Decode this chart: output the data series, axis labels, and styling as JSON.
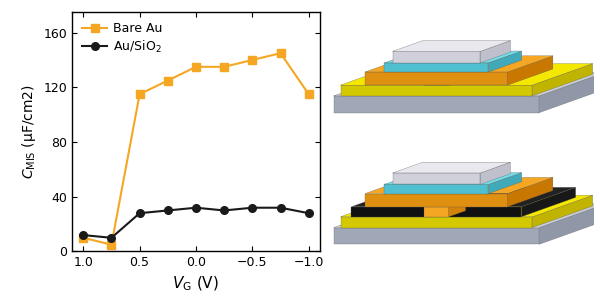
{
  "vg_bare_au": [
    1.0,
    0.75,
    0.5,
    0.25,
    0.0,
    -0.25,
    -0.5,
    -0.75,
    -1.0
  ],
  "c_bare_au": [
    10,
    5,
    115,
    125,
    135,
    135,
    140,
    145,
    115
  ],
  "vg_sio2": [
    1.0,
    0.75,
    0.5,
    0.25,
    0.0,
    -0.25,
    -0.5,
    -0.75,
    -1.0
  ],
  "c_sio2": [
    12,
    10,
    28,
    30,
    32,
    30,
    32,
    32,
    28
  ],
  "bare_au_color": "#F5A623",
  "sio2_color": "#1a1a1a",
  "xlabel": "$V_{\\mathrm{G}}$ (V)",
  "ylabel": "$C_{\\mathrm{MIS}}$ (μF/cm2)",
  "legend_bare": "Bare Au",
  "legend_sio2": "Au/SiO$_2$",
  "ylim": [
    0,
    175
  ],
  "yticks": [
    0,
    40,
    80,
    120,
    160
  ],
  "xlim_left": 1.1,
  "xlim_right": -1.1,
  "xticks": [
    1.0,
    0.5,
    0.0,
    -0.5,
    -1.0
  ],
  "axis_color": "#000000",
  "label_color": "#000000"
}
